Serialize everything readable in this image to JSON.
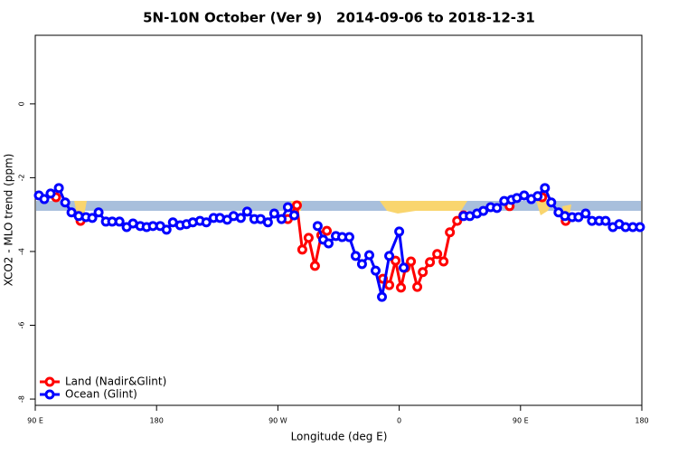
{
  "chart_data": {
    "type": "line",
    "title": "5N-10N October (Ver 9)   2014-09-06 to 2018-12-31",
    "xlabel": "Longitude (deg E)",
    "ylabel": "XCO2 - MLO trend (ppm)",
    "xlim": [
      90,
      540
    ],
    "ylim": [
      -8.17,
      1.86
    ],
    "xticks": [
      {
        "value": 90,
        "label": "90 E"
      },
      180,
      {
        "value": 270,
        "label": "90 W"
      },
      {
        "value": 360,
        "label": "0"
      },
      {
        "value": 450,
        "label": "90 E"
      },
      {
        "value": 540,
        "label": "180"
      }
    ],
    "yticks": [
      0,
      -2,
      -4,
      -6,
      -8
    ],
    "legend": "bottom-left",
    "series": [
      {
        "name": "Land (Nadir&Glint)",
        "color": "#ff0000",
        "x": [
          105.4,
          114,
          123.6,
          200,
          277.4,
          284.1,
          288.1,
          292.8,
          297.5,
          302.2,
          306.3,
          327,
          347.9,
          352.6,
          357.3,
          361.3,
          364.7,
          368.7,
          373.4,
          377.5,
          382.8,
          388.2,
          392.9,
          397.6,
          403.0,
          407.7,
          425,
          441.9,
          454,
          466.1,
          475,
          483.5
        ],
        "values": [
          -2.53,
          null,
          -3.17,
          null,
          -3.12,
          -2.75,
          -3.95,
          -3.63,
          -4.39,
          -3.56,
          -3.44,
          null,
          -4.74,
          -4.91,
          -4.25,
          -4.98,
          -4.44,
          -4.27,
          -4.96,
          -4.56,
          -4.29,
          -4.07,
          -4.27,
          -3.48,
          -3.17,
          -3.02,
          null,
          -2.77,
          null,
          -2.53,
          null,
          -3.17
        ]
      },
      {
        "name": "Ocean (Glint)",
        "color": "#0000ff",
        "x": [
          92.7,
          96.7,
          101.4,
          107.5,
          112.2,
          116.9,
          122.2,
          127.6,
          132.3,
          137.0,
          142.4,
          147.1,
          152.5,
          157.8,
          162.5,
          167.9,
          172.6,
          177.3,
          182.7,
          187.4,
          192.1,
          197.5,
          202.2,
          206.9,
          212.2,
          216.9,
          222.3,
          227.0,
          232.4,
          237.1,
          242.5,
          247.2,
          252.5,
          257.2,
          262.6,
          267.3,
          272.7,
          277.4,
          282.1,
          290,
          299.5,
          303.6,
          307.6,
          313.0,
          317.7,
          323.0,
          327.7,
          332.4,
          337.8,
          342.5,
          347.2,
          352.6,
          360.0,
          363.3,
          385,
          407.7,
          412.4,
          417.7,
          422.4,
          427.8,
          432.5,
          437.9,
          443.3,
          447.3,
          452.7,
          458.0,
          462.7,
          468.1,
          472.8,
          478.2,
          482.9,
          488.3,
          493.0,
          498.3,
          503.0,
          508.4,
          513.1,
          518.5,
          523.2,
          527.9,
          533.3,
          538.6
        ],
        "values": [
          -2.48,
          -2.58,
          -2.43,
          -2.28,
          -2.67,
          -2.94,
          -3.04,
          -3.07,
          -3.09,
          -2.94,
          -3.19,
          -3.19,
          -3.19,
          -3.34,
          -3.24,
          -3.31,
          -3.34,
          -3.31,
          -3.31,
          -3.41,
          -3.21,
          -3.29,
          -3.26,
          -3.21,
          -3.17,
          -3.21,
          -3.09,
          -3.09,
          -3.14,
          -3.04,
          -3.09,
          -2.92,
          -3.12,
          -3.12,
          -3.21,
          -2.97,
          -3.12,
          -2.8,
          -3.02,
          null,
          -3.31,
          -3.68,
          -3.78,
          -3.58,
          -3.61,
          -3.61,
          -4.12,
          -4.34,
          -4.1,
          -4.52,
          -5.23,
          -4.12,
          -3.46,
          -4.44,
          null,
          -3.04,
          -3.04,
          -2.97,
          -2.9,
          -2.8,
          -2.82,
          -2.63,
          -2.6,
          -2.55,
          -2.48,
          -2.58,
          -2.5,
          -2.28,
          -2.67,
          -2.94,
          -3.04,
          -3.07,
          -3.07,
          -2.97,
          -3.17,
          -3.17,
          -3.17,
          -3.34,
          -3.26,
          -3.34,
          -3.34,
          -3.34
        ]
      }
    ]
  }
}
